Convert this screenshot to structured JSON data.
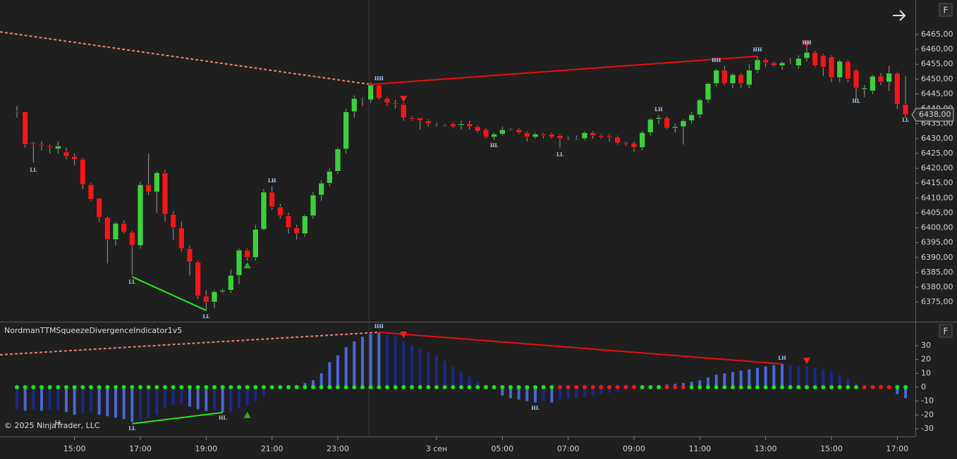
{
  "indicator_title": "NordmanTTMSqueezeDivergenceIndicator1v5",
  "copyright": "© 2025 NinjaTrader, LLC",
  "buttons": [
    "F",
    "F"
  ],
  "chart_data": [
    {
      "type": "candlestick",
      "up_color": "#3ecf3e",
      "down_color": "#f01818",
      "xlim": [
        -2.057,
        109.2
      ],
      "ylim": [
        6368.4,
        6476.6
      ],
      "yticks": [
        {
          "value": 6375,
          "label": "6375,00"
        },
        {
          "value": 6380,
          "label": "6380,00"
        },
        {
          "value": 6385,
          "label": "6385,00"
        },
        {
          "value": 6390,
          "label": "6390,00"
        },
        {
          "value": 6395,
          "label": "6395,00"
        },
        {
          "value": 6400,
          "label": "6400,00"
        },
        {
          "value": 6405,
          "label": "6405,00"
        },
        {
          "value": 6410,
          "label": "6410,00"
        },
        {
          "value": 6415,
          "label": "6415,00"
        },
        {
          "value": 6420,
          "label": "6420,00"
        },
        {
          "value": 6425,
          "label": "6425,00"
        },
        {
          "value": 6430,
          "label": "6430,00"
        },
        {
          "value": 6435,
          "label": "6435,00"
        },
        {
          "value": 6440,
          "label": "6440,00"
        },
        {
          "value": 6445,
          "label": "6445,00"
        },
        {
          "value": 6450,
          "label": "6450,00"
        },
        {
          "value": 6455,
          "label": "6455,00"
        },
        {
          "value": 6460,
          "label": "6460,00"
        },
        {
          "value": 6465,
          "label": "6465,00"
        }
      ],
      "xticks": [
        {
          "value": 7,
          "label": "15:00"
        },
        {
          "value": 15,
          "label": "17:00"
        },
        {
          "value": 23,
          "label": "19:00"
        },
        {
          "value": 31,
          "label": "21:00"
        },
        {
          "value": 39,
          "label": "23:00"
        },
        {
          "value": 51,
          "label": "3 сен"
        },
        {
          "value": 59,
          "label": "05:00"
        },
        {
          "value": 67,
          "label": "07:00"
        },
        {
          "value": 75,
          "label": "09:00"
        },
        {
          "value": 83,
          "label": "11:00"
        },
        {
          "value": 91,
          "label": "13:00"
        },
        {
          "value": 99,
          "label": "15:00"
        },
        {
          "value": 107,
          "label": "17:00"
        }
      ],
      "last_price": {
        "value": 6438,
        "label": "6438,00"
      },
      "open": [
        6439,
        6439,
        6428.5,
        6428,
        6427.5,
        6426.5,
        6425.5,
        6424,
        6423,
        6414.5,
        6410,
        6403.5,
        6396,
        6401.5,
        6398.5,
        6394,
        6414.5,
        6412,
        6418.5,
        6404.5,
        6400,
        6393,
        6388.5,
        6377,
        6375,
        6378.5,
        6379,
        6384,
        6392.5,
        6390,
        6399.5,
        6412,
        6407,
        6404,
        6400,
        6398,
        6404,
        6411,
        6415,
        6419,
        6426.5,
        6439,
        6443.5,
        6443,
        6448,
        6443.5,
        6442,
        6441.5,
        6437,
        6437,
        6436,
        6435,
        6434.5,
        6435,
        6434.5,
        6435,
        6434,
        6433,
        6430.5,
        6431.5,
        6433,
        6433,
        6432,
        6430.5,
        6431.5,
        6431.5,
        6431,
        6430.5,
        6430,
        6430,
        6432,
        6431,
        6431,
        6430.5,
        6428.5,
        6428.5,
        6427,
        6432,
        6436.5,
        6437,
        6433.5,
        6434,
        6436,
        6438,
        6443,
        6448.5,
        6453,
        6448.5,
        6451.5,
        6448,
        6453,
        6456.5,
        6455.5,
        6454.5,
        6456,
        6454.5,
        6457,
        6459,
        6458,
        6457.5,
        6450.5,
        6456,
        6453,
        6446.5,
        6446,
        6451,
        6449,
        6452,
        6441.5
      ],
      "high": [
        6441,
        6439,
        6429,
        6429,
        6428,
        6429,
        6427,
        6425,
        6423.5,
        6415,
        6410,
        6404,
        6402,
        6402.5,
        6399,
        6415.5,
        6425,
        6419,
        6419.5,
        6405.5,
        6402,
        6394,
        6389,
        6379,
        6379,
        6379.5,
        6386,
        6393,
        6393,
        6401,
        6413,
        6414,
        6408,
        6405,
        6401,
        6404.5,
        6412,
        6416,
        6420,
        6427,
        6440,
        6444.5,
        6444,
        6449,
        6448.5,
        6444,
        6443,
        6442,
        6437.5,
        6437,
        6436.5,
        6435.5,
        6435,
        6435.5,
        6436,
        6436,
        6434.5,
        6433.5,
        6432,
        6434,
        6433.5,
        6433.5,
        6432.5,
        6432,
        6432,
        6432,
        6431.5,
        6431,
        6431,
        6432.5,
        6432.5,
        6431.5,
        6431.5,
        6431,
        6429,
        6429,
        6432.5,
        6437,
        6438,
        6437.5,
        6435,
        6436.5,
        6439,
        6443.5,
        6449,
        6453.5,
        6454.5,
        6452,
        6452,
        6455,
        6457.5,
        6457,
        6456,
        6456,
        6457,
        6458,
        6461,
        6459.5,
        6458.5,
        6458,
        6456.5,
        6456.5,
        6453.5,
        6448,
        6451.5,
        6452,
        6454.5,
        6452.5,
        6451
      ],
      "low": [
        6437,
        6427,
        6422,
        6426,
        6425,
        6425,
        6423,
        6421,
        6413,
        6409,
        6402,
        6388,
        6394,
        6398,
        6384,
        6393,
        6411,
        6405,
        6402,
        6396,
        6392,
        6384,
        6376,
        6372,
        6373,
        6378,
        6378,
        6381,
        6389,
        6389,
        6399,
        6406,
        6403,
        6398,
        6396,
        6397,
        6403,
        6409,
        6414,
        6418,
        6425,
        6437,
        6441,
        6442,
        6443,
        6441,
        6440,
        6436,
        6436,
        6433,
        6434,
        6434,
        6434,
        6433.5,
        6433,
        6433,
        6432,
        6430,
        6429.5,
        6431,
        6432.5,
        6431.5,
        6429,
        6430,
        6430,
        6430,
        6427,
        6429.5,
        6429.5,
        6429.5,
        6430,
        6430,
        6429,
        6428,
        6427.5,
        6425.5,
        6426,
        6431,
        6435,
        6433,
        6432,
        6428,
        6435,
        6437,
        6442,
        6447.5,
        6448,
        6447,
        6447,
        6447,
        6452,
        6454,
        6454,
        6453,
        6455,
        6453.5,
        6456,
        6454,
        6451,
        6449,
        6449,
        6449,
        6443,
        6444,
        6445,
        6448,
        6446,
        6440,
        6437
      ],
      "close": [
        6439,
        6428,
        6428,
        6427.5,
        6427,
        6427.5,
        6424,
        6423,
        6414.5,
        6409.5,
        6403.5,
        6396,
        6401.5,
        6398.5,
        6394,
        6414.5,
        6412,
        6418.5,
        6404.5,
        6400,
        6393,
        6388.5,
        6377,
        6375,
        6378.5,
        6379,
        6384,
        6392.5,
        6390,
        6399.5,
        6412,
        6407,
        6404,
        6400,
        6398,
        6404,
        6411,
        6415,
        6419,
        6426.5,
        6439,
        6443.5,
        6443.5,
        6448,
        6443.5,
        6442,
        6441.5,
        6437,
        6436.5,
        6436,
        6435,
        6435,
        6434.5,
        6434,
        6435,
        6434,
        6432.5,
        6430.5,
        6431.5,
        6433,
        6433,
        6432,
        6430.5,
        6431.5,
        6431,
        6430.5,
        6430,
        6430.5,
        6430,
        6432,
        6431,
        6430.5,
        6430.5,
        6428.5,
        6428,
        6427,
        6432,
        6436.5,
        6437,
        6433.5,
        6434,
        6436,
        6438,
        6443,
        6448.5,
        6453,
        6448.5,
        6451.5,
        6448.5,
        6453,
        6456.5,
        6455.5,
        6454.5,
        6455.5,
        6456,
        6457,
        6459,
        6454.5,
        6454,
        6450.5,
        6456,
        6450,
        6447,
        6447,
        6451,
        6449,
        6452,
        6441.5,
        6438
      ],
      "annotations": [
        {
          "text": "LL",
          "x": 2,
          "y": 6419.3
        },
        {
          "text": "LL",
          "x": 14,
          "y": 6381.6
        },
        {
          "text": "LL",
          "x": 23,
          "y": 6370
        },
        {
          "text": "LH",
          "x": 31,
          "y": 6415.7
        },
        {
          "text": "HH",
          "x": 44,
          "y": 6450.1
        },
        {
          "text": "HL",
          "x": 58,
          "y": 6427.6
        },
        {
          "text": "LL",
          "x": 66,
          "y": 6424.5
        },
        {
          "text": "LH",
          "x": 78,
          "y": 6439.7
        },
        {
          "text": "HH",
          "x": 85,
          "y": 6456.2
        },
        {
          "text": "HH",
          "x": 90,
          "y": 6459.8
        },
        {
          "text": "HH",
          "x": 96,
          "y": 6462.2
        },
        {
          "text": "HL",
          "x": 102,
          "y": 6442.5
        },
        {
          "text": "LL",
          "x": 108,
          "y": 6436.1
        }
      ],
      "lines": [
        {
          "x1": -2.057,
          "y1": 6465.9,
          "x2": 43,
          "y2": 6448.2,
          "color": "#f08070",
          "dashed": true
        },
        {
          "x1": 43,
          "y1": 6448.2,
          "x2": 90,
          "y2": 6457.7,
          "color": "#e81010",
          "dashed": false
        },
        {
          "x1": 14,
          "y1": 6383.5,
          "x2": 23,
          "y2": 6372.2,
          "color": "#22e822",
          "dashed": false
        }
      ],
      "markers": [
        {
          "x": 47,
          "y": 6443.4,
          "direction": "down",
          "color": "#f02020"
        },
        {
          "x": 96,
          "y": 6461.9,
          "direction": "down",
          "color": "#f02020"
        },
        {
          "x": 28,
          "y": 6387.3,
          "direction": "up",
          "color": "#2ea82e"
        }
      ]
    },
    {
      "type": "histogram",
      "rising_color": "#4a66d6",
      "falling_color": "#1c2889",
      "xlim": [
        -2.057,
        109.2
      ],
      "ylim": [
        -35.6,
        46.8
      ],
      "yticks": [
        30,
        20,
        10,
        0,
        -10,
        -20,
        -30
      ],
      "values": [
        -16,
        -17,
        -16,
        -17,
        -17,
        -17,
        -18,
        -20,
        -19,
        -18,
        -20,
        -21,
        -22,
        -23,
        -25,
        -24,
        -22,
        -20,
        -15,
        -13,
        -12,
        -14,
        -16,
        -17,
        -17,
        -18,
        -18,
        -15,
        -13,
        -10,
        -6,
        -1,
        0.5,
        1,
        1.5,
        3,
        5,
        10,
        18,
        23,
        29,
        33,
        36.5,
        38.5,
        39.5,
        38,
        36.5,
        33,
        30.5,
        28,
        25,
        23,
        19,
        15,
        11,
        7.5,
        4,
        1.5,
        0,
        -6,
        -8,
        -9,
        -10,
        -11,
        -10,
        -11,
        -9,
        -8,
        -8,
        -7,
        -6,
        -5,
        -4,
        -3,
        -2,
        -1,
        0.5,
        1,
        1.5,
        2,
        2.5,
        3,
        4,
        5,
        7,
        9,
        10,
        11,
        12,
        13,
        14,
        15,
        16,
        17,
        16,
        15.5,
        15,
        14,
        13,
        11,
        9,
        6,
        3,
        1,
        0.5,
        0,
        -1,
        -5,
        -8
      ],
      "dot_values": [
        0,
        0,
        0,
        0,
        0,
        0,
        0,
        0,
        0,
        0,
        0,
        0,
        0,
        0,
        0,
        0,
        0,
        0,
        0,
        0,
        0,
        0,
        0,
        0,
        0,
        0,
        0,
        0,
        0,
        0,
        0,
        0,
        0,
        0,
        0,
        0,
        0,
        0,
        0,
        0,
        0,
        0,
        0,
        0,
        0,
        0,
        0,
        0,
        0,
        0,
        0,
        0,
        0,
        0,
        0,
        0,
        0,
        0,
        0,
        0,
        0,
        0,
        0,
        0,
        0,
        0,
        0,
        0,
        0,
        0,
        0,
        0,
        0,
        0,
        0,
        0,
        0,
        0,
        0,
        0,
        0,
        0,
        0,
        0,
        0,
        0,
        0,
        0,
        0,
        0,
        0,
        0,
        0,
        0,
        0,
        0,
        0,
        0,
        0,
        0,
        0,
        0,
        0,
        0,
        0,
        0,
        0,
        0,
        0
      ],
      "dot_colors": [
        "#19e619",
        "#19e619",
        "#19e619",
        "#19e619",
        "#19e619",
        "#19e619",
        "#19e619",
        "#19e619",
        "#19e619",
        "#19e619",
        "#19e619",
        "#19e619",
        "#19e619",
        "#19e619",
        "#19e619",
        "#19e619",
        "#19e619",
        "#19e619",
        "#19e619",
        "#19e619",
        "#19e619",
        "#19e619",
        "#19e619",
        "#19e619",
        "#19e619",
        "#19e619",
        "#19e619",
        "#19e619",
        "#19e619",
        "#19e619",
        "#19e619",
        "#19e619",
        "#19e619",
        "#19e619",
        "#19e619",
        "#19e619",
        "#19e619",
        "#19e619",
        "#19e619",
        "#19e619",
        "#19e619",
        "#19e619",
        "#19e619",
        "#19e619",
        "#19e619",
        "#19e619",
        "#19e619",
        "#19e619",
        "#19e619",
        "#19e619",
        "#19e619",
        "#19e619",
        "#19e619",
        "#19e619",
        "#19e619",
        "#19e619",
        "#19e619",
        "#19e619",
        "#19e619",
        "#19e619",
        "#19e619",
        "#19e619",
        "#19e619",
        "#19e619",
        "#19e619",
        "#19e619",
        "#f01818",
        "#f01818",
        "#f01818",
        "#f01818",
        "#f01818",
        "#f01818",
        "#f01818",
        "#f01818",
        "#f01818",
        "#f01818",
        "#19e619",
        "#19e619",
        "#19e619",
        "#f01818",
        "#f01818",
        "#f01818",
        "#19e619",
        "#19e619",
        "#19e619",
        "#19e619",
        "#19e619",
        "#19e619",
        "#19e619",
        "#19e619",
        "#19e619",
        "#19e619",
        "#19e619",
        "#19e619",
        "#19e619",
        "#19e619",
        "#19e619",
        "#19e619",
        "#19e619",
        "#19e619",
        "#19e619",
        "#19e619",
        "#19e619",
        "#f01818",
        "#f01818",
        "#f01818",
        "#f01818",
        "#19e619",
        "#19e619"
      ],
      "annotations": [
        {
          "text": "HH",
          "x": 44,
          "y": 43.7
        },
        {
          "text": "LL",
          "x": 5,
          "y": -26
        },
        {
          "text": "LL",
          "x": 14,
          "y": -30
        },
        {
          "text": "HL",
          "x": 25,
          "y": -22.4
        },
        {
          "text": "HL",
          "x": 63,
          "y": -15.3
        },
        {
          "text": "LH",
          "x": 93,
          "y": 20.8
        }
      ],
      "lines": [
        {
          "x1": -2.057,
          "y1": 23.4,
          "x2": 44,
          "y2": 39.7,
          "color": "#f08070",
          "dashed": true
        },
        {
          "x1": 44,
          "y1": 39.7,
          "x2": 93,
          "y2": 16.8,
          "color": "#e81010",
          "dashed": false
        },
        {
          "x1": 14,
          "y1": -26.4,
          "x2": 25,
          "y2": -18.3,
          "color": "#22e822",
          "dashed": false
        }
      ],
      "markers": [
        {
          "x": 47,
          "y": 38.1,
          "direction": "down",
          "color": "#f02020"
        },
        {
          "x": 96,
          "y": 19.3,
          "direction": "down",
          "color": "#f02020"
        },
        {
          "x": 28,
          "y": -20.3,
          "direction": "up",
          "color": "#2ea82e"
        }
      ]
    }
  ]
}
